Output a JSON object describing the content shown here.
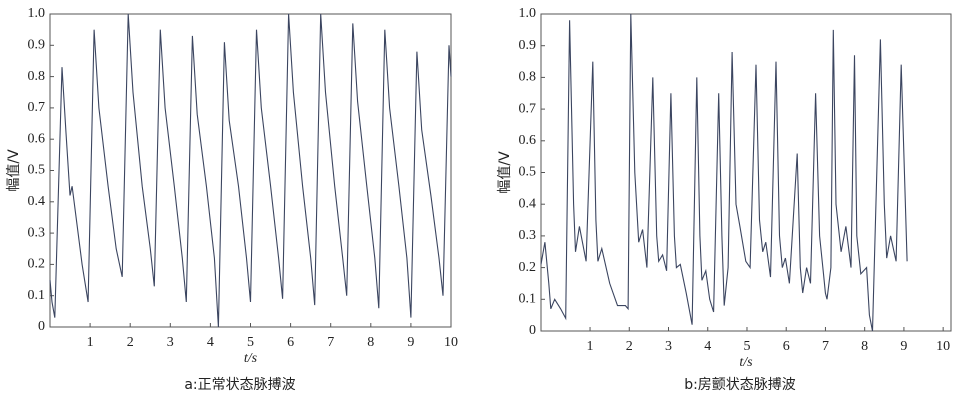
{
  "chart_data": [
    {
      "type": "line",
      "caption": "a:正常状态脉搏波",
      "x_label": "t/s",
      "y_label": "幅值/V",
      "xlim": [
        0,
        10
      ],
      "ylim": [
        0,
        1
      ],
      "xticks": [
        1,
        2,
        3,
        4,
        5,
        6,
        7,
        8,
        9,
        10
      ],
      "yticks": [
        0,
        0.1,
        0.2,
        0.3,
        0.4,
        0.5,
        0.6,
        0.7,
        0.8,
        0.9,
        {
          "value": 1,
          "label": "1.0"
        }
      ],
      "series": [
        {
          "color": "#3b4560",
          "x": [
            0,
            0.05,
            0.12,
            0.3,
            0.4,
            0.5,
            0.55,
            0.6,
            0.8,
            0.95,
            1.1,
            1.22,
            1.45,
            1.65,
            1.8,
            1.95,
            2.07,
            2.3,
            2.5,
            2.6,
            2.75,
            2.87,
            3.1,
            3.3,
            3.4,
            3.55,
            3.67,
            3.9,
            4.1,
            4.2,
            4.35,
            4.47,
            4.7,
            4.9,
            5.0,
            5.15,
            5.27,
            5.5,
            5.7,
            5.8,
            5.95,
            6.07,
            6.3,
            6.5,
            6.6,
            6.75,
            6.87,
            7.1,
            7.3,
            7.4,
            7.55,
            7.67,
            7.9,
            8.1,
            8.2,
            8.35,
            8.47,
            8.7,
            8.9,
            9.0,
            9.15,
            9.27,
            9.5,
            9.7,
            9.8,
            9.95,
            10
          ],
          "values": [
            0.15,
            0.08,
            0.03,
            0.83,
            0.62,
            0.42,
            0.45,
            0.4,
            0.2,
            0.08,
            0.95,
            0.7,
            0.45,
            0.25,
            0.16,
            1.0,
            0.75,
            0.45,
            0.25,
            0.13,
            0.95,
            0.7,
            0.45,
            0.22,
            0.08,
            0.93,
            0.68,
            0.45,
            0.22,
            0.0,
            0.91,
            0.66,
            0.45,
            0.22,
            0.08,
            0.95,
            0.7,
            0.45,
            0.22,
            0.09,
            1.0,
            0.75,
            0.45,
            0.22,
            0.07,
            1.0,
            0.75,
            0.45,
            0.22,
            0.1,
            0.97,
            0.72,
            0.45,
            0.22,
            0.06,
            0.95,
            0.7,
            0.45,
            0.22,
            0.03,
            0.88,
            0.63,
            0.42,
            0.22,
            0.1,
            0.9,
            0.8
          ]
        }
      ]
    },
    {
      "type": "line",
      "caption": "b:房颤状态脉搏波",
      "x_label": "t/s",
      "y_label": "幅值/V",
      "xlim": [
        -0.25,
        10.2
      ],
      "ylim": [
        0,
        1
      ],
      "xticks": [
        1,
        2,
        3,
        4,
        5,
        6,
        7,
        8,
        9,
        10
      ],
      "yticks": [
        0,
        0.1,
        0.2,
        0.3,
        0.4,
        0.5,
        0.6,
        0.7,
        0.8,
        0.9,
        {
          "value": 1,
          "label": "1.0"
        }
      ],
      "series": [
        {
          "color": "#3b4560",
          "x": [
            -0.25,
            -0.15,
            -0.05,
            0,
            0.1,
            0.25,
            0.38,
            0.48,
            0.58,
            0.63,
            0.73,
            0.9,
            1.07,
            1.15,
            1.2,
            1.3,
            1.5,
            1.7,
            1.9,
            1.97,
            2.04,
            2.14,
            2.24,
            2.34,
            2.45,
            2.6,
            2.7,
            2.75,
            2.85,
            2.95,
            3.06,
            3.15,
            3.2,
            3.3,
            3.45,
            3.6,
            3.72,
            3.8,
            3.85,
            3.95,
            4.05,
            4.15,
            4.28,
            4.36,
            4.42,
            4.52,
            4.62,
            4.72,
            4.82,
            4.97,
            5.08,
            5.23,
            5.32,
            5.4,
            5.48,
            5.6,
            5.74,
            5.83,
            5.9,
            5.98,
            6.08,
            6.28,
            6.36,
            6.42,
            6.52,
            6.62,
            6.75,
            6.85,
            6.95,
            7.0,
            7.04,
            7.14,
            7.2,
            7.27,
            7.4,
            7.52,
            7.65,
            7.74,
            7.8,
            7.9,
            8.05,
            8.12,
            8.2,
            8.4,
            8.5,
            8.56,
            8.66,
            8.8,
            8.93,
            9.08
          ],
          "values": [
            0.21,
            0.28,
            0.15,
            0.07,
            0.1,
            0.07,
            0.04,
            0.98,
            0.4,
            0.25,
            0.33,
            0.22,
            0.85,
            0.35,
            0.22,
            0.26,
            0.15,
            0.08,
            0.08,
            0.07,
            1.0,
            0.5,
            0.28,
            0.32,
            0.2,
            0.8,
            0.3,
            0.22,
            0.24,
            0.19,
            0.75,
            0.3,
            0.2,
            0.21,
            0.12,
            0.02,
            0.8,
            0.3,
            0.16,
            0.19,
            0.1,
            0.06,
            0.75,
            0.3,
            0.08,
            0.2,
            0.88,
            0.4,
            0.33,
            0.22,
            0.2,
            0.84,
            0.35,
            0.25,
            0.28,
            0.17,
            0.85,
            0.3,
            0.2,
            0.23,
            0.15,
            0.56,
            0.2,
            0.12,
            0.2,
            0.15,
            0.75,
            0.3,
            0.18,
            0.12,
            0.1,
            0.2,
            0.95,
            0.4,
            0.25,
            0.33,
            0.2,
            0.87,
            0.3,
            0.18,
            0.2,
            0.05,
            0.0,
            0.92,
            0.4,
            0.23,
            0.3,
            0.22,
            0.84,
            0.22
          ]
        }
      ]
    }
  ]
}
